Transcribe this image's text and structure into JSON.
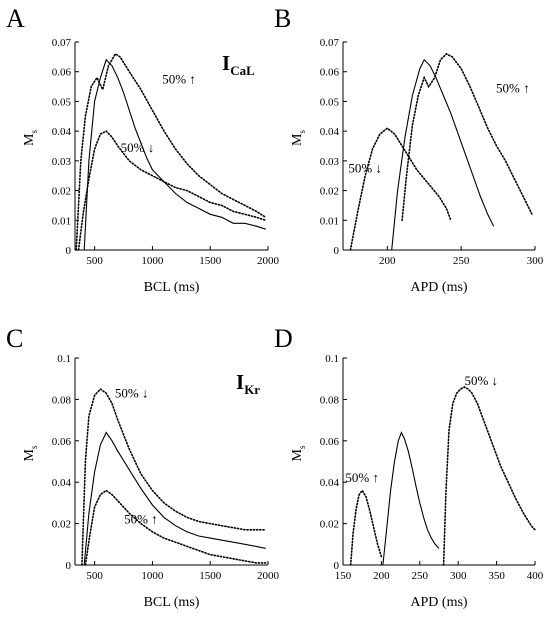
{
  "figure": {
    "panels": [
      {
        "letter": "A"
      },
      {
        "letter": "B"
      },
      {
        "letter": "C"
      },
      {
        "letter": "D"
      }
    ],
    "current_labels": [
      {
        "main": "I",
        "sub": "CaL"
      },
      {
        "main": "I",
        "sub": "Kr"
      }
    ]
  },
  "chart_data": [
    {
      "type": "line",
      "panel": "A",
      "xlabel": "BCL (ms)",
      "ylabel_main": "M",
      "ylabel_sub": "s",
      "xlim": [
        330,
        2000
      ],
      "ylim": [
        0,
        0.07
      ],
      "xticks": [
        500,
        1000,
        1500,
        2000
      ],
      "xtick_labels": [
        "500",
        "1000",
        "1500",
        "2000"
      ],
      "yticks": [
        0,
        0.01,
        0.02,
        0.03,
        0.04,
        0.05,
        0.06,
        0.07
      ],
      "ytick_labels": [
        "0",
        "0.01",
        "0.02",
        "0.03",
        "0.04",
        "0.05",
        "0.06",
        "0.07"
      ],
      "series": [
        {
          "style": "solid",
          "x": [
            410,
            450,
            500,
            550,
            600,
            650,
            700,
            750,
            800,
            850,
            900,
            950,
            1000,
            1100,
            1200,
            1300,
            1400,
            1500,
            1600,
            1700,
            1800,
            1900,
            1980
          ],
          "y": [
            0,
            0.03,
            0.05,
            0.058,
            0.064,
            0.062,
            0.058,
            0.053,
            0.047,
            0.041,
            0.036,
            0.031,
            0.027,
            0.023,
            0.019,
            0.016,
            0.014,
            0.012,
            0.011,
            0.009,
            0.009,
            0.008,
            0.007
          ]
        },
        {
          "style": "dotted",
          "x": [
            340,
            380,
            420,
            470,
            520,
            570,
            620,
            680,
            720,
            800,
            900,
            1000,
            1100,
            1200,
            1300,
            1400,
            1500,
            1600,
            1700,
            1800,
            1900,
            1980
          ],
          "y": [
            0,
            0.03,
            0.045,
            0.055,
            0.058,
            0.054,
            0.062,
            0.066,
            0.065,
            0.06,
            0.054,
            0.047,
            0.04,
            0.034,
            0.029,
            0.025,
            0.022,
            0.019,
            0.017,
            0.015,
            0.013,
            0.011
          ]
        },
        {
          "style": "dotted",
          "x": [
            360,
            400,
            450,
            500,
            550,
            600,
            650,
            700,
            800,
            900,
            1000,
            1100,
            1200,
            1300,
            1400,
            1500,
            1600,
            1700,
            1800,
            1900,
            1980
          ],
          "y": [
            0,
            0.012,
            0.024,
            0.034,
            0.039,
            0.04,
            0.038,
            0.035,
            0.03,
            0.027,
            0.025,
            0.023,
            0.021,
            0.02,
            0.018,
            0.016,
            0.015,
            0.013,
            0.012,
            0.011,
            0.01
          ]
        }
      ],
      "annotations": [
        {
          "text": "50% ↑",
          "x": 1230,
          "y": 0.056
        },
        {
          "text": "50% ↓",
          "x": 870,
          "y": 0.033
        }
      ]
    },
    {
      "type": "line",
      "panel": "B",
      "xlabel": "APD (ms)",
      "ylabel_main": "M",
      "ylabel_sub": "s",
      "xlim": [
        170,
        300
      ],
      "ylim": [
        0,
        0.07
      ],
      "xticks": [
        200,
        250,
        300
      ],
      "xtick_labels": [
        "200",
        "250",
        "300"
      ],
      "yticks": [
        0,
        0.01,
        0.02,
        0.03,
        0.04,
        0.05,
        0.06,
        0.07
      ],
      "ytick_labels": [
        "0",
        "0.01",
        "0.02",
        "0.03",
        "0.04",
        "0.05",
        "0.06",
        "0.07"
      ],
      "series": [
        {
          "style": "solid",
          "x": [
            203,
            207,
            212,
            217,
            222,
            225,
            229,
            233,
            238,
            243,
            248,
            253,
            258,
            263,
            268,
            272
          ],
          "y": [
            0,
            0.02,
            0.038,
            0.052,
            0.061,
            0.064,
            0.062,
            0.058,
            0.052,
            0.046,
            0.039,
            0.032,
            0.025,
            0.018,
            0.012,
            0.008
          ]
        },
        {
          "style": "dotted",
          "x": [
            210,
            213,
            217,
            221,
            225,
            228,
            232,
            236,
            240,
            244,
            250,
            256,
            262,
            268,
            274,
            280,
            286,
            292,
            298
          ],
          "y": [
            0.01,
            0.025,
            0.042,
            0.052,
            0.058,
            0.055,
            0.058,
            0.064,
            0.066,
            0.065,
            0.061,
            0.055,
            0.048,
            0.041,
            0.035,
            0.03,
            0.024,
            0.018,
            0.012
          ]
        },
        {
          "style": "dotted",
          "x": [
            175,
            180,
            185,
            190,
            195,
            200,
            205,
            210,
            215,
            220,
            225,
            230,
            235,
            240,
            243
          ],
          "y": [
            0,
            0.013,
            0.025,
            0.034,
            0.039,
            0.041,
            0.039,
            0.035,
            0.031,
            0.027,
            0.024,
            0.021,
            0.018,
            0.014,
            0.01
          ]
        }
      ],
      "annotations": [
        {
          "text": "50% ↑",
          "x": 285,
          "y": 0.053
        },
        {
          "text": "50% ↓",
          "x": 185,
          "y": 0.026
        }
      ]
    },
    {
      "type": "line",
      "panel": "C",
      "xlabel": "BCL (ms)",
      "ylabel_main": "M",
      "ylabel_sub": "s",
      "xlim": [
        330,
        2000
      ],
      "ylim": [
        0,
        0.1
      ],
      "xticks": [
        500,
        1000,
        1500,
        2000
      ],
      "xtick_labels": [
        "500",
        "1000",
        "1500",
        "2000"
      ],
      "yticks": [
        0,
        0.02,
        0.04,
        0.06,
        0.08,
        0.1
      ],
      "ytick_labels": [
        "0",
        "0.02",
        "0.04",
        "0.06",
        "0.08",
        "0.1"
      ],
      "series": [
        {
          "style": "solid",
          "x": [
            410,
            450,
            500,
            550,
            600,
            650,
            700,
            800,
            900,
            1000,
            1100,
            1200,
            1300,
            1400,
            1500,
            1600,
            1700,
            1800,
            1900,
            1980
          ],
          "y": [
            0,
            0.025,
            0.045,
            0.058,
            0.064,
            0.06,
            0.055,
            0.046,
            0.037,
            0.029,
            0.023,
            0.019,
            0.016,
            0.014,
            0.013,
            0.012,
            0.011,
            0.01,
            0.009,
            0.008
          ]
        },
        {
          "style": "dotted",
          "x": [
            390,
            420,
            450,
            500,
            550,
            600,
            650,
            700,
            800,
            900,
            1000,
            1100,
            1200,
            1300,
            1400,
            1500,
            1600,
            1700,
            1800,
            1900,
            1980
          ],
          "y": [
            0,
            0.05,
            0.072,
            0.082,
            0.085,
            0.083,
            0.078,
            0.07,
            0.056,
            0.044,
            0.036,
            0.03,
            0.026,
            0.023,
            0.021,
            0.02,
            0.019,
            0.018,
            0.017,
            0.017,
            0.017
          ]
        },
        {
          "style": "dotted",
          "x": [
            420,
            460,
            500,
            550,
            600,
            650,
            700,
            800,
            900,
            1000,
            1100,
            1200,
            1300,
            1400,
            1500,
            1600,
            1700,
            1800,
            1900,
            1980
          ],
          "y": [
            0,
            0.015,
            0.028,
            0.034,
            0.036,
            0.034,
            0.031,
            0.025,
            0.02,
            0.016,
            0.013,
            0.011,
            0.009,
            0.007,
            0.005,
            0.004,
            0.003,
            0.002,
            0.001,
            0.001
          ]
        }
      ],
      "annotations": [
        {
          "text": "50% ↓",
          "x": 820,
          "y": 0.081
        },
        {
          "text": "50% ↑",
          "x": 900,
          "y": 0.02
        }
      ]
    },
    {
      "type": "line",
      "panel": "D",
      "xlabel": "APD (ms)",
      "ylabel_main": "M",
      "ylabel_sub": "s",
      "xlim": [
        150,
        400
      ],
      "ylim": [
        0,
        0.1
      ],
      "xticks": [
        150,
        200,
        250,
        300,
        350,
        400
      ],
      "xtick_labels": [
        "150",
        "200",
        "250",
        "300",
        "350",
        "400"
      ],
      "yticks": [
        0,
        0.02,
        0.04,
        0.06,
        0.08,
        0.1
      ],
      "ytick_labels": [
        "0",
        "0.02",
        "0.04",
        "0.06",
        "0.08",
        "0.1"
      ],
      "series": [
        {
          "style": "solid",
          "x": [
            202,
            207,
            212,
            217,
            222,
            226,
            230,
            235,
            240,
            245,
            250,
            255,
            260,
            265,
            270,
            275
          ],
          "y": [
            0,
            0.018,
            0.036,
            0.05,
            0.06,
            0.064,
            0.061,
            0.055,
            0.047,
            0.038,
            0.03,
            0.023,
            0.017,
            0.013,
            0.01,
            0.008
          ]
        },
        {
          "style": "dotted",
          "x": [
            281,
            284,
            288,
            293,
            298,
            303,
            308,
            313,
            318,
            325,
            335,
            345,
            355,
            365,
            375,
            385,
            395,
            400
          ],
          "y": [
            0,
            0.035,
            0.065,
            0.078,
            0.083,
            0.085,
            0.086,
            0.085,
            0.083,
            0.078,
            0.068,
            0.058,
            0.048,
            0.04,
            0.032,
            0.025,
            0.019,
            0.017
          ]
        },
        {
          "style": "dotted",
          "x": [
            160,
            163,
            167,
            171,
            175,
            180,
            185,
            190,
            195,
            200
          ],
          "y": [
            0,
            0.015,
            0.027,
            0.034,
            0.036,
            0.033,
            0.026,
            0.018,
            0.01,
            0.004
          ]
        }
      ],
      "annotations": [
        {
          "text": "50% ↓",
          "x": 330,
          "y": 0.087
        },
        {
          "text": "50% ↑",
          "x": 175,
          "y": 0.04
        }
      ]
    }
  ]
}
